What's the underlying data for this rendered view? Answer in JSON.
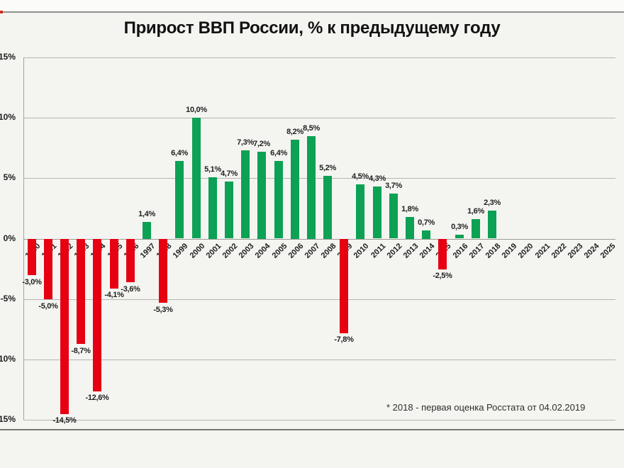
{
  "page": {
    "background": "#f4f5f1",
    "video_top_bar": {
      "track_color": "#90918d",
      "progress_color": "#cf2e26"
    }
  },
  "chart_data": {
    "type": "bar",
    "title": "Прирост ВВП России, % к предыдущему году",
    "footnote": "* 2018  - первая оценка Росстата от 04.02.2019",
    "xlabel": "",
    "ylabel": "",
    "ylim": [
      -15,
      15
    ],
    "grid": true,
    "legend": false,
    "bar_colors": {
      "positive": "#0ca154",
      "negative": "#e60012"
    },
    "y_ticks": [
      {
        "value": 15,
        "label": "15%"
      },
      {
        "value": 10,
        "label": "10%"
      },
      {
        "value": 5,
        "label": "5%"
      },
      {
        "value": 0,
        "label": "0%"
      },
      {
        "value": -5,
        "label": "-5%"
      },
      {
        "value": -10,
        "label": "-10%"
      },
      {
        "value": -15,
        "label": "-15%"
      }
    ],
    "points": [
      {
        "year": "1990",
        "value": -3.0,
        "label": "-3,0%"
      },
      {
        "year": "1991",
        "value": -5.0,
        "label": "-5,0%"
      },
      {
        "year": "1992",
        "value": -14.5,
        "label": "-14,5%"
      },
      {
        "year": "1993",
        "value": -8.7,
        "label": "-8,7%"
      },
      {
        "year": "1994",
        "value": -12.6,
        "label": "-12,6%"
      },
      {
        "year": "1995",
        "value": -4.1,
        "label": "-4,1%"
      },
      {
        "year": "1996",
        "value": -3.6,
        "label": "-3,6%"
      },
      {
        "year": "1997",
        "value": 1.4,
        "label": "1,4%"
      },
      {
        "year": "1998",
        "value": -5.3,
        "label": "-5,3%"
      },
      {
        "year": "1999",
        "value": 6.4,
        "label": "6,4%"
      },
      {
        "year": "2000",
        "value": 10.0,
        "label": "10,0%"
      },
      {
        "year": "2001",
        "value": 5.1,
        "label": "5,1%"
      },
      {
        "year": "2002",
        "value": 4.7,
        "label": "4,7%"
      },
      {
        "year": "2003",
        "value": 7.3,
        "label": "7,3%"
      },
      {
        "year": "2004",
        "value": 7.2,
        "label": "7,2%"
      },
      {
        "year": "2005",
        "value": 6.4,
        "label": "6,4%"
      },
      {
        "year": "2006",
        "value": 8.2,
        "label": "8,2%"
      },
      {
        "year": "2007",
        "value": 8.5,
        "label": "8,5%"
      },
      {
        "year": "2008",
        "value": 5.2,
        "label": "5,2%"
      },
      {
        "year": "2009",
        "value": -7.8,
        "label": "-7,8%"
      },
      {
        "year": "2010",
        "value": 4.5,
        "label": "4,5%"
      },
      {
        "year": "2011",
        "value": 4.3,
        "label": "4,3%"
      },
      {
        "year": "2012",
        "value": 3.7,
        "label": "3,7%"
      },
      {
        "year": "2013",
        "value": 1.8,
        "label": "1,8%"
      },
      {
        "year": "2014",
        "value": 0.7,
        "label": "0,7%"
      },
      {
        "year": "2015",
        "value": -2.5,
        "label": "-2,5%"
      },
      {
        "year": "2016",
        "value": 0.3,
        "label": "0,3%"
      },
      {
        "year": "2017",
        "value": 1.6,
        "label": "1,6%"
      },
      {
        "year": "2018",
        "value": 2.3,
        "label": "2,3%"
      },
      {
        "year": "2019",
        "value": null,
        "label": ""
      },
      {
        "year": "2020",
        "value": null,
        "label": ""
      },
      {
        "year": "2021",
        "value": null,
        "label": ""
      },
      {
        "year": "2022",
        "value": null,
        "label": ""
      },
      {
        "year": "2023",
        "value": null,
        "label": ""
      },
      {
        "year": "2024",
        "value": null,
        "label": ""
      },
      {
        "year": "2025",
        "value": null,
        "label": ""
      }
    ]
  }
}
